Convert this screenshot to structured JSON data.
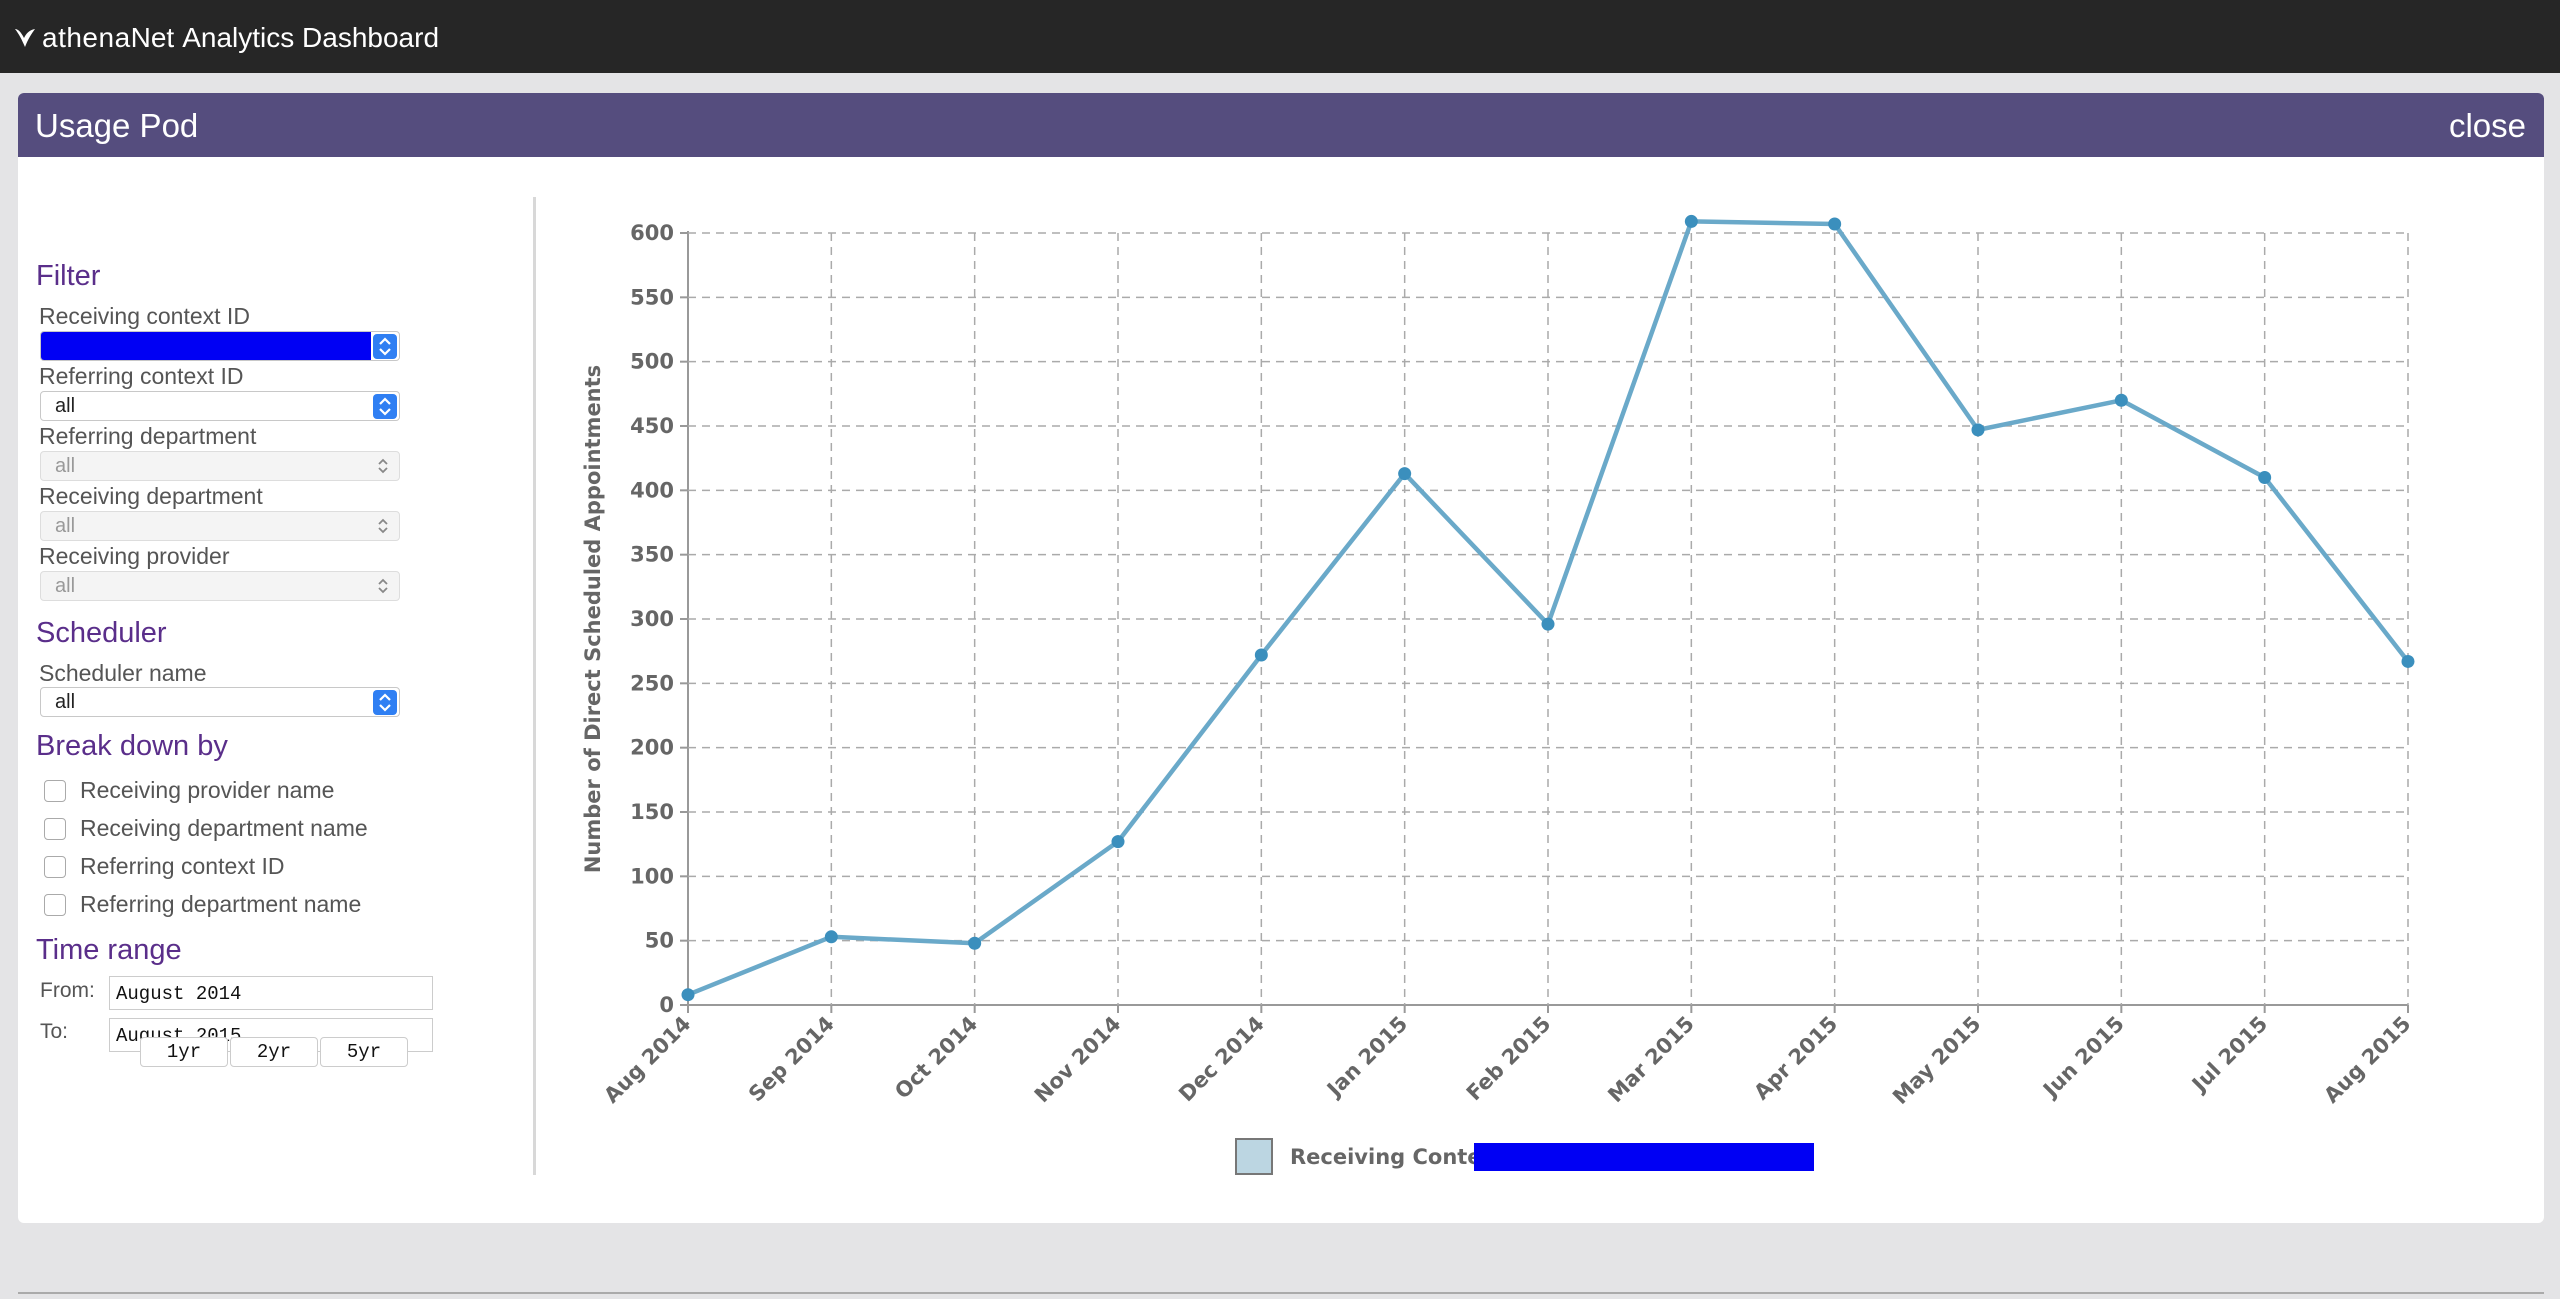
{
  "app": {
    "brand_name": "athena",
    "brand_suffix": "Net",
    "title": "Analytics Dashboard"
  },
  "pod": {
    "title": "Usage Pod",
    "close_label": "close"
  },
  "filter": {
    "heading": "Filter",
    "receiving_context_label": "Receiving context ID",
    "referring_context_label": "Referring context ID",
    "referring_context_value": "all",
    "referring_department_label": "Referring department",
    "referring_department_value": "all",
    "receiving_department_label": "Receiving department",
    "receiving_department_value": "all",
    "receiving_provider_label": "Receiving provider",
    "receiving_provider_value": "all"
  },
  "scheduler": {
    "heading": "Scheduler",
    "name_label": "Scheduler name",
    "name_value": "all"
  },
  "breakdown": {
    "heading": "Break down by",
    "options": [
      "Receiving provider name",
      "Receiving department name",
      "Referring context ID",
      "Referring department name"
    ]
  },
  "time_range": {
    "heading": "Time range",
    "from_label": "From:",
    "from_value": "August 2014",
    "to_label": "To:",
    "to_value": "August 2015",
    "buttons": [
      "1yr",
      "2yr",
      "5yr"
    ]
  },
  "colors": {
    "accent_purple": "#554d7e",
    "heading_purple": "#5a2e8a",
    "series_line": "#6aa9c9",
    "series_marker": "#3b8fbd",
    "redaction_blue": "#0000f4"
  },
  "chart_data": {
    "type": "line",
    "categories": [
      "Aug 2014",
      "Sep 2014",
      "Oct 2014",
      "Nov 2014",
      "Dec 2014",
      "Jan 2015",
      "Feb 2015",
      "Mar 2015",
      "Apr 2015",
      "May 2015",
      "Jun 2015",
      "Jul 2015",
      "Aug 2015"
    ],
    "series": [
      {
        "name": "Receiving Context:",
        "values": [
          8,
          53,
          48,
          127,
          272,
          413,
          296,
          609,
          607,
          447,
          470,
          410,
          267
        ]
      }
    ],
    "ylabel": "Number of Direct Scheduled Appointments",
    "ylim": [
      0,
      600
    ],
    "yticks": [
      0,
      50,
      100,
      150,
      200,
      250,
      300,
      350,
      400,
      450,
      500,
      550,
      600
    ],
    "grid": true,
    "legend": "bottom-center"
  }
}
